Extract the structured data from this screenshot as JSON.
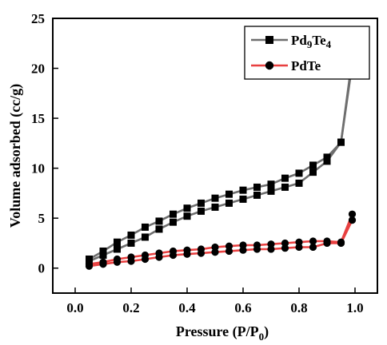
{
  "chart_data": {
    "type": "line",
    "xlabel_main": "Pressure (P/P",
    "xlabel_sub": "0",
    "xlabel_close": ")",
    "ylabel": "Volume adsorbed (cc/g)",
    "xlim": [
      -0.08,
      1.08
    ],
    "ylim": [
      -2.5,
      25
    ],
    "x_ticks": [
      0.0,
      0.2,
      0.4,
      0.6,
      0.8,
      1.0
    ],
    "x_tick_labels": [
      "0.0",
      "0.2",
      "0.4",
      "0.6",
      "0.8",
      "1.0"
    ],
    "y_ticks": [
      0,
      5,
      10,
      15,
      20,
      25
    ],
    "y_tick_labels": [
      "0",
      "5",
      "10",
      "15",
      "20",
      "25"
    ],
    "legend_position": "top-right",
    "series": [
      {
        "name": "Pd9Te4",
        "legend_main": "Pd",
        "legend_sub1": "9",
        "legend_mid": "Te",
        "legend_sub2": "4",
        "color": "#6e6e6e",
        "marker": "square",
        "adsorption": {
          "x": [
            0.05,
            0.1,
            0.15,
            0.2,
            0.25,
            0.3,
            0.35,
            0.4,
            0.45,
            0.5,
            0.55,
            0.6,
            0.65,
            0.7,
            0.75,
            0.8,
            0.85,
            0.9,
            0.95,
            0.99
          ],
          "y": [
            0.7,
            1.3,
            1.9,
            2.5,
            3.1,
            3.9,
            4.6,
            5.2,
            5.7,
            6.1,
            6.5,
            6.9,
            7.3,
            7.7,
            8.1,
            8.5,
            9.6,
            10.7,
            12.6,
            20.4
          ]
        },
        "desorption": {
          "x": [
            0.99,
            0.95,
            0.9,
            0.85,
            0.8,
            0.75,
            0.7,
            0.65,
            0.6,
            0.55,
            0.5,
            0.45,
            0.4,
            0.35,
            0.3,
            0.25,
            0.2,
            0.15,
            0.1,
            0.05
          ],
          "y": [
            21.0,
            12.6,
            11.1,
            10.3,
            9.5,
            9.0,
            8.4,
            8.1,
            7.8,
            7.4,
            7.0,
            6.5,
            6.0,
            5.4,
            4.7,
            4.1,
            3.3,
            2.6,
            1.7,
            0.9
          ]
        }
      },
      {
        "name": "PdTe",
        "legend_main": "PdTe",
        "color": "#e84040",
        "marker": "circle",
        "adsorption": {
          "x": [
            0.05,
            0.1,
            0.15,
            0.2,
            0.25,
            0.3,
            0.35,
            0.4,
            0.45,
            0.5,
            0.55,
            0.6,
            0.65,
            0.7,
            0.75,
            0.8,
            0.85,
            0.9,
            0.95,
            0.99
          ],
          "y": [
            0.2,
            0.4,
            0.6,
            0.7,
            0.9,
            1.1,
            1.3,
            1.4,
            1.5,
            1.6,
            1.7,
            1.8,
            1.9,
            1.9,
            2.0,
            2.1,
            2.1,
            2.5,
            2.5,
            4.8
          ]
        },
        "desorption": {
          "x": [
            0.99,
            0.95,
            0.9,
            0.85,
            0.8,
            0.75,
            0.7,
            0.65,
            0.6,
            0.55,
            0.5,
            0.45,
            0.4,
            0.35,
            0.3,
            0.25,
            0.2,
            0.15,
            0.1,
            0.05
          ],
          "y": [
            5.4,
            2.6,
            2.7,
            2.7,
            2.6,
            2.5,
            2.4,
            2.3,
            2.3,
            2.2,
            2.1,
            1.9,
            1.8,
            1.7,
            1.5,
            1.3,
            1.1,
            0.9,
            0.6,
            0.4
          ]
        }
      }
    ]
  }
}
